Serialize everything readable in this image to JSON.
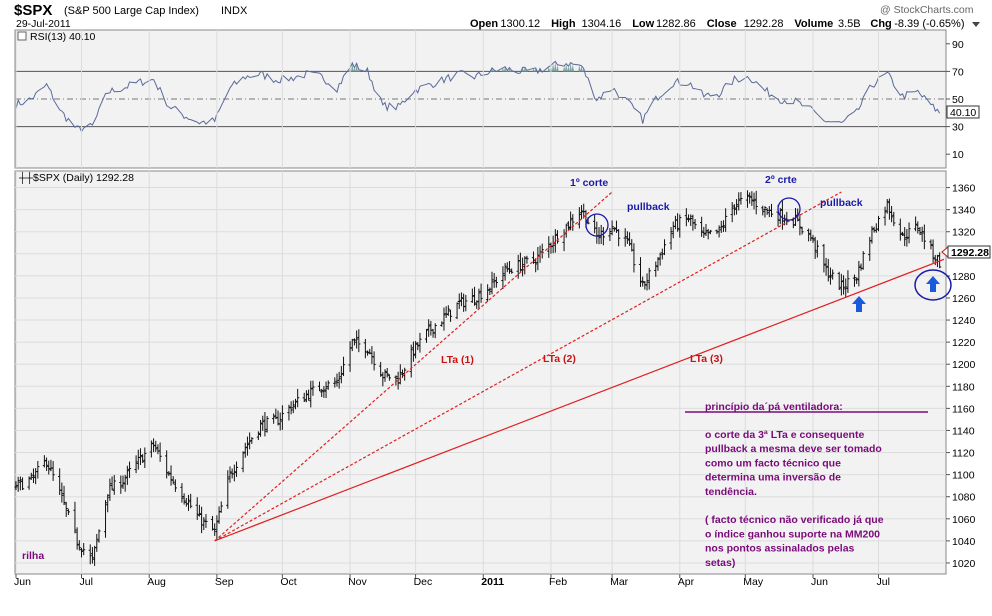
{
  "header": {
    "symbol": "$SPX",
    "name": "(S&P 500 Large Cap Index)",
    "exchange": "INDX",
    "date": "29-Jul-2011",
    "watermark": "@ StockCharts.com",
    "quote": [
      {
        "label": "Open",
        "value": "1300.12"
      },
      {
        "label": "High",
        "value": "1304.16"
      },
      {
        "label": "Low",
        "value": "1282.86"
      },
      {
        "label": "Close",
        "value": "1292.28"
      },
      {
        "label": "Volume",
        "value": "3.5B"
      },
      {
        "label": "Chg",
        "value": "-8.39 (-0.65%)"
      }
    ]
  },
  "rsi_panel": {
    "legend": "RSI(13) 40.10",
    "current_label": "40.10",
    "ticks": [
      "90",
      "70",
      "50",
      "30",
      "10"
    ]
  },
  "price_panel": {
    "legend": "$SPX (Daily) 1292.28",
    "last_price_label": "1292.28",
    "ticks": [
      "1360",
      "1340",
      "1320",
      "1300",
      "1280",
      "1260",
      "1240",
      "1220",
      "1200",
      "1180",
      "1160",
      "1140",
      "1120",
      "1100",
      "1080",
      "1060",
      "1040",
      "1020"
    ]
  },
  "x_axis": {
    "months": [
      "Jun",
      "Jul",
      "Aug",
      "Sep",
      "Oct",
      "Nov",
      "Dec",
      "2011",
      "Feb",
      "Mar",
      "Apr",
      "May",
      "Jun",
      "Jul"
    ]
  },
  "annotations": {
    "corte1": "1º corte",
    "corte2": "2º crte",
    "pullback1": "pullback",
    "pullback2": "pullback",
    "lta1": "LTa (1)",
    "lta2": "LTa (2)",
    "lta3": "LTa (3)",
    "rilha": "rilha",
    "principle_title": "princípio da´pá ventiladora:",
    "principle_text": [
      "o corte da 3ª LTa e consequente",
      "pullback a mesma deve ser tomado",
      "como um facto técnico que",
      "determina uma inversão de",
      "tendência.",
      "",
      "( facto técnico não verificado já que",
      "o índice ganhou suporte na  MM200",
      "nos pontos assinalados pelas",
      "setas)"
    ]
  },
  "colors": {
    "panel_bg": "#f2f2f2",
    "price_bars": "#111111",
    "rsi_line": "#5a6a9a",
    "rsi_fill": "#6f9b96",
    "trendlines": "#e02020",
    "annotation_blue": "#1a1aaa",
    "annotation_red": "#c81414",
    "annotation_purple": "#7a0a7a"
  },
  "chart_data": {
    "type": "line",
    "title": "$SPX (S&P 500 Large Cap Index) INDX",
    "price_scale": {
      "ylim": [
        1010,
        1375
      ]
    },
    "rsi_scale": {
      "ylim": [
        0,
        100
      ],
      "levels": [
        70,
        50,
        30
      ]
    },
    "x_dates": [
      "2010-06-01",
      "2010-06-08",
      "2010-06-15",
      "2010-06-22",
      "2010-06-29",
      "2010-07-06",
      "2010-07-13",
      "2010-07-20",
      "2010-07-27",
      "2010-08-03",
      "2010-08-10",
      "2010-08-17",
      "2010-08-24",
      "2010-08-31",
      "2010-09-07",
      "2010-09-14",
      "2010-09-21",
      "2010-09-28",
      "2010-10-05",
      "2010-10-12",
      "2010-10-19",
      "2010-10-26",
      "2010-11-02",
      "2010-11-09",
      "2010-11-16",
      "2010-11-23",
      "2010-11-30",
      "2010-12-07",
      "2010-12-14",
      "2010-12-21",
      "2010-12-28",
      "2011-01-04",
      "2011-01-11",
      "2011-01-18",
      "2011-01-25",
      "2011-02-01",
      "2011-02-08",
      "2011-02-15",
      "2011-02-22",
      "2011-03-01",
      "2011-03-08",
      "2011-03-15",
      "2011-03-22",
      "2011-03-29",
      "2011-04-05",
      "2011-04-12",
      "2011-04-19",
      "2011-04-26",
      "2011-05-03",
      "2011-05-10",
      "2011-05-17",
      "2011-05-24",
      "2011-05-31",
      "2011-06-07",
      "2011-06-14",
      "2011-06-21",
      "2011-06-28",
      "2011-07-05",
      "2011-07-12",
      "2011-07-19",
      "2011-07-26",
      "2011-07-29"
    ],
    "series": [
      {
        "name": "$SPX (Daily)",
        "values": [
          1090,
          1095,
          1113,
          1078,
          1040,
          1022,
          1085,
          1095,
          1112,
          1127,
          1100,
          1080,
          1060,
          1048,
          1100,
          1125,
          1145,
          1148,
          1162,
          1172,
          1180,
          1183,
          1220,
          1215,
          1190,
          1187,
          1212,
          1230,
          1242,
          1255,
          1260,
          1270,
          1285,
          1290,
          1295,
          1310,
          1325,
          1340,
          1315,
          1325,
          1310,
          1270,
          1295,
          1325,
          1332,
          1315,
          1320,
          1345,
          1350,
          1340,
          1335,
          1330,
          1315,
          1285,
          1270,
          1280,
          1320,
          1345,
          1315,
          1325,
          1300,
          1292.28
        ]
      },
      {
        "name": "RSI(13)",
        "values": [
          46,
          50,
          60,
          40,
          28,
          30,
          55,
          58,
          62,
          64,
          45,
          38,
          33,
          34,
          58,
          66,
          68,
          64,
          65,
          68,
          66,
          58,
          75,
          70,
          45,
          44,
          56,
          60,
          64,
          68,
          66,
          70,
          72,
          70,
          70,
          74,
          76,
          74,
          50,
          58,
          48,
          35,
          52,
          62,
          62,
          52,
          54,
          64,
          66,
          56,
          50,
          48,
          42,
          34,
          32,
          40,
          60,
          68,
          52,
          55,
          44,
          40.1
        ]
      }
    ],
    "trendlines": [
      {
        "name": "LTa (1)",
        "from": [
          "2010-08-31",
          1040
        ],
        "to": [
          "2011-03-01",
          1356
        ]
      },
      {
        "name": "LTa (2)",
        "from": [
          "2010-08-31",
          1040
        ],
        "to": [
          "2011-06-14",
          1356
        ]
      },
      {
        "name": "LTa (3)",
        "from": [
          "2010-08-31",
          1040
        ],
        "to": [
          "2011-07-31",
          1295
        ]
      }
    ]
  }
}
